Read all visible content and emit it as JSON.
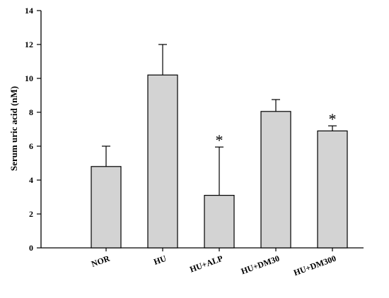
{
  "chart_data": {
    "type": "bar",
    "categories": [
      "NOR",
      "HU",
      "HU+ALP",
      "HU+DM30",
      "HU+DM300"
    ],
    "values": [
      4.8,
      10.2,
      3.1,
      8.05,
      6.9
    ],
    "errors": [
      1.2,
      1.8,
      2.85,
      0.7,
      0.3
    ],
    "annotations": [
      "",
      "",
      "*",
      "",
      "*"
    ],
    "ylabel": "Serum uric acid (nM)",
    "xlabel": "",
    "ylim": [
      0,
      14
    ],
    "yticks": [
      0,
      2,
      4,
      6,
      8,
      10,
      12,
      14
    ],
    "bar_color": "#d3d3d3",
    "grid": false
  }
}
